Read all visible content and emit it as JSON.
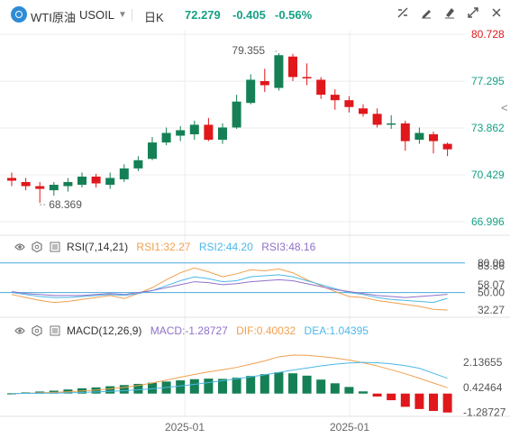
{
  "header": {
    "symbol_name": "WTI原油",
    "symbol_code": "USOIL",
    "caret": "▼",
    "period": "日K",
    "last": "72.279",
    "change": "-0.405",
    "change_pct": "-0.56%"
  },
  "toolbar": {
    "icons": [
      "indicator-settings-icon",
      "pencil-icon",
      "draw-icon",
      "fullscreen-icon",
      "close-icon"
    ]
  },
  "collapse_icon": "<",
  "rsi": {
    "label": "RSI(7,14,21)",
    "rsi1": "RSI1:32.27",
    "rsi2": "RSI2:44.20",
    "rsi3": "RSI3:48.16",
    "axis_labels": [
      "80.00",
      "83.86",
      "58.07",
      "50.00",
      "32.27"
    ],
    "colors": {
      "rsi1": "#f0a050",
      "rsi2": "#4db8e8",
      "rsi3": "#9070c8"
    }
  },
  "macd": {
    "label": "MACD(12,26,9)",
    "macd": "MACD:-1.28727",
    "dif": "DIF:0.40032",
    "dea": "DEA:1.04395",
    "axis_labels": [
      "2.13655",
      "0.42464",
      "-1.28727"
    ],
    "colors": {
      "macd": "#9070c8",
      "dif": "#f0a050",
      "dea": "#4db8e8"
    }
  },
  "x_labels": [
    "2025-01",
    "2025-01"
  ],
  "colors": {
    "up": "#158055",
    "down": "#e0171b",
    "grid": "#ececec",
    "ref_line": "#4aa8d8"
  },
  "chart_data": [
    {
      "type": "candlestick",
      "title": "WTI原油 USOIL 日K",
      "y_ticks": [
        80.728,
        77.295,
        73.862,
        70.429,
        66.996
      ],
      "ylim": [
        66.2,
        81.0
      ],
      "annotations": {
        "high": "79.355",
        "low": "68.369"
      },
      "candles": [
        {
          "o": 70.2,
          "c": 70.0,
          "h": 70.6,
          "l": 69.6
        },
        {
          "o": 69.9,
          "c": 69.6,
          "h": 70.2,
          "l": 69.3
        },
        {
          "o": 69.6,
          "c": 69.4,
          "h": 69.9,
          "l": 68.37
        },
        {
          "o": 69.3,
          "c": 69.7,
          "h": 69.9,
          "l": 68.9
        },
        {
          "o": 69.6,
          "c": 69.9,
          "h": 70.2,
          "l": 69.2
        },
        {
          "o": 69.7,
          "c": 70.3,
          "h": 70.6,
          "l": 69.5
        },
        {
          "o": 70.3,
          "c": 69.8,
          "h": 70.5,
          "l": 69.5
        },
        {
          "o": 69.7,
          "c": 70.2,
          "h": 70.6,
          "l": 69.4
        },
        {
          "o": 70.1,
          "c": 70.9,
          "h": 71.2,
          "l": 69.9
        },
        {
          "o": 70.9,
          "c": 71.5,
          "h": 71.8,
          "l": 70.7
        },
        {
          "o": 71.6,
          "c": 72.8,
          "h": 73.2,
          "l": 71.5
        },
        {
          "o": 72.8,
          "c": 73.5,
          "h": 73.9,
          "l": 72.6
        },
        {
          "o": 73.3,
          "c": 73.7,
          "h": 74.0,
          "l": 72.9
        },
        {
          "o": 73.4,
          "c": 74.1,
          "h": 74.4,
          "l": 73.0
        },
        {
          "o": 74.1,
          "c": 73.0,
          "h": 74.6,
          "l": 72.9
        },
        {
          "o": 73.0,
          "c": 73.9,
          "h": 74.2,
          "l": 72.7
        },
        {
          "o": 73.9,
          "c": 75.8,
          "h": 76.3,
          "l": 73.8
        },
        {
          "o": 75.7,
          "c": 77.4,
          "h": 77.8,
          "l": 75.6
        },
        {
          "o": 77.3,
          "c": 77.0,
          "h": 78.2,
          "l": 76.5
        },
        {
          "o": 76.8,
          "c": 79.2,
          "h": 79.355,
          "l": 76.6
        },
        {
          "o": 79.1,
          "c": 77.6,
          "h": 79.3,
          "l": 77.3
        },
        {
          "o": 77.6,
          "c": 77.5,
          "h": 78.6,
          "l": 77.0
        },
        {
          "o": 77.4,
          "c": 76.3,
          "h": 77.6,
          "l": 76.0
        },
        {
          "o": 76.3,
          "c": 75.9,
          "h": 76.7,
          "l": 75.2
        },
        {
          "o": 75.9,
          "c": 75.4,
          "h": 76.2,
          "l": 75.0
        },
        {
          "o": 75.3,
          "c": 74.9,
          "h": 75.6,
          "l": 74.7
        },
        {
          "o": 74.9,
          "c": 74.1,
          "h": 75.3,
          "l": 73.9
        },
        {
          "o": 74.2,
          "c": 74.2,
          "h": 74.8,
          "l": 73.8
        },
        {
          "o": 74.2,
          "c": 72.9,
          "h": 74.4,
          "l": 72.2
        },
        {
          "o": 73.0,
          "c": 73.5,
          "h": 73.9,
          "l": 72.7
        },
        {
          "o": 73.4,
          "c": 72.9,
          "h": 73.6,
          "l": 72.0
        },
        {
          "o": 72.7,
          "c": 72.3,
          "h": 72.8,
          "l": 71.8
        }
      ]
    },
    {
      "type": "line",
      "title": "RSI(7,14,21)",
      "ylim": [
        25,
        88
      ],
      "reference_lines": [
        80,
        50
      ],
      "series": [
        {
          "name": "RSI1",
          "values": [
            48,
            45,
            42,
            40,
            41,
            43,
            45,
            47,
            44,
            49,
            55,
            63,
            70,
            75,
            71,
            66,
            69,
            73,
            72,
            74,
            70,
            63,
            57,
            51,
            46,
            45,
            42,
            40,
            38,
            36,
            33,
            32.27
          ]
        },
        {
          "name": "RSI2",
          "values": [
            50,
            48,
            46,
            45,
            45,
            46,
            47,
            48,
            47,
            49,
            52,
            57,
            62,
            66,
            64,
            61,
            62,
            66,
            67,
            68,
            66,
            62,
            58,
            54,
            50,
            48,
            45,
            43,
            42,
            41,
            40,
            44.2
          ]
        },
        {
          "name": "RSI3",
          "values": [
            51,
            49,
            48,
            47,
            47,
            47,
            48,
            49,
            48,
            50,
            52,
            55,
            58,
            61,
            60,
            58,
            59,
            61,
            62,
            63,
            62,
            59,
            56,
            53,
            51,
            49,
            47,
            46,
            45,
            46,
            47,
            48.16
          ]
        }
      ]
    },
    {
      "type": "bar",
      "title": "MACD(12,26,9)",
      "ylim": [
        -1.55,
        3.6
      ],
      "series": [
        {
          "name": "MACD",
          "values": [
            0.02,
            0.08,
            0.14,
            0.2,
            0.28,
            0.36,
            0.42,
            0.5,
            0.58,
            0.66,
            0.74,
            0.82,
            0.9,
            0.98,
            1.02,
            1.0,
            1.08,
            1.2,
            1.32,
            1.45,
            1.38,
            1.22,
            0.95,
            0.7,
            0.45,
            0.15,
            -0.2,
            -0.45,
            -0.9,
            -1.05,
            -1.18,
            -1.28727
          ]
        },
        {
          "name": "DIF",
          "values": [
            0.0,
            0.02,
            0.05,
            0.08,
            0.12,
            0.18,
            0.24,
            0.32,
            0.42,
            0.55,
            0.72,
            0.92,
            1.12,
            1.3,
            1.48,
            1.62,
            1.78,
            2.0,
            2.22,
            2.5,
            2.62,
            2.6,
            2.52,
            2.42,
            2.28,
            2.1,
            1.88,
            1.62,
            1.35,
            1.05,
            0.72,
            0.40032
          ]
        },
        {
          "name": "DEA",
          "values": [
            0.0,
            0.01,
            0.02,
            0.03,
            0.05,
            0.08,
            0.11,
            0.15,
            0.2,
            0.26,
            0.33,
            0.42,
            0.52,
            0.63,
            0.75,
            0.88,
            1.0,
            1.14,
            1.28,
            1.44,
            1.6,
            1.74,
            1.88,
            2.0,
            2.08,
            2.12,
            2.1,
            2.02,
            1.9,
            1.72,
            1.38,
            1.04395
          ]
        }
      ]
    }
  ]
}
